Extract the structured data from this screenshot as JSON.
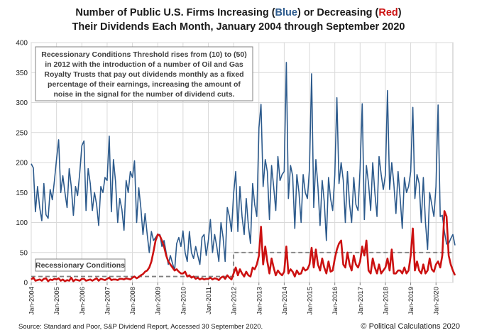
{
  "chart_data": {
    "type": "line",
    "title_parts": [
      {
        "text": "Number of Public U.S. Firms Increasing (",
        "color": "#1a1a1a"
      },
      {
        "text": "Blue",
        "color": "#2c5a8c"
      },
      {
        "text": ") or Decreasing (",
        "color": "#1a1a1a"
      },
      {
        "text": "Red",
        "color": "#cc1111"
      },
      {
        "text": ")",
        "color": "#1a1a1a"
      }
    ],
    "title_line2": "Their Dividends Each Month, January 2004 through September 2020",
    "ylim": [
      0,
      400
    ],
    "yticks": [
      "0",
      "50",
      "100",
      "150",
      "200",
      "250",
      "300",
      "350",
      "400"
    ],
    "x_start": "Jan-2004",
    "months": 201,
    "xticks": [
      "Jan-2004",
      "Jan-2005",
      "Jan-2006",
      "Jan-2007",
      "Jan-2008",
      "Jan-2009",
      "Jan-2010",
      "Jan-2011",
      "Jan-2012",
      "Jan-2013",
      "Jan-2014",
      "Jan-2015",
      "Jan-2016",
      "Jan-2017",
      "Jan-2018",
      "Jan-2019",
      "Jan-2020"
    ],
    "grid": true,
    "series": [
      {
        "name": "Increasing",
        "color": "#2c5a8c",
        "values": [
          198,
          191,
          118,
          160,
          125,
          103,
          165,
          113,
          107,
          155,
          138,
          170,
          205,
          238,
          150,
          178,
          150,
          125,
          190,
          160,
          112,
          160,
          145,
          182,
          228,
          236,
          120,
          190,
          165,
          120,
          150,
          130,
          95,
          160,
          150,
          175,
          170,
          244,
          118,
          205,
          168,
          100,
          140,
          122,
          87,
          170,
          150,
          185,
          175,
          203,
          100,
          158,
          125,
          80,
          115,
          80,
          50,
          85,
          70,
          75,
          80,
          80,
          60,
          70,
          50,
          30,
          45,
          32,
          20,
          65,
          75,
          60,
          86,
          50,
          35,
          85,
          50,
          40,
          60,
          45,
          30,
          75,
          80,
          45,
          70,
          105,
          50,
          80,
          60,
          35,
          100,
          75,
          35,
          125,
          110,
          85,
          148,
          185,
          85,
          160,
          110,
          80,
          140,
          95,
          65,
          165,
          130,
          110,
          258,
          297,
          160,
          205,
          185,
          105,
          195,
          160,
          120,
          210,
          170,
          180,
          185,
          367,
          140,
          195,
          178,
          90,
          180,
          150,
          100,
          180,
          150,
          140,
          190,
          348,
          125,
          205,
          160,
          95,
          170,
          135,
          70,
          175,
          140,
          120,
          180,
          308,
          165,
          200,
          170,
          100,
          185,
          130,
          100,
          175,
          130,
          120,
          190,
          298,
          105,
          195,
          165,
          120,
          200,
          150,
          110,
          210,
          180,
          155,
          180,
          320,
          155,
          200,
          165,
          115,
          185,
          140,
          90,
          175,
          150,
          160,
          185,
          292,
          140,
          180,
          165,
          100,
          175,
          100,
          55,
          150,
          130,
          110,
          160,
          296,
          110,
          112,
          85,
          64,
          65,
          73,
          80,
          62
        ]
      },
      {
        "name": "Decreasing",
        "color": "#cc1111",
        "values": [
          5,
          8,
          3,
          4,
          5,
          3,
          6,
          7,
          2,
          5,
          4,
          6,
          5,
          7,
          3,
          5,
          2,
          4,
          3,
          8,
          2,
          5,
          4,
          3,
          6,
          6,
          3,
          4,
          5,
          3,
          5,
          7,
          3,
          6,
          5,
          4,
          6,
          8,
          4,
          5,
          5,
          4,
          6,
          6,
          5,
          7,
          6,
          5,
          8,
          10,
          7,
          9,
          12,
          14,
          18,
          20,
          25,
          35,
          52,
          70,
          80,
          78,
          70,
          60,
          45,
          35,
          30,
          25,
          20,
          22,
          18,
          15,
          15,
          18,
          10,
          12,
          8,
          10,
          6,
          8,
          5,
          7,
          5,
          6,
          6,
          8,
          5,
          7,
          6,
          4,
          8,
          10,
          6,
          12,
          8,
          5,
          15,
          25,
          12,
          22,
          15,
          10,
          18,
          12,
          10,
          25,
          22,
          30,
          45,
          93,
          30,
          60,
          35,
          15,
          40,
          25,
          12,
          20,
          15,
          12,
          18,
          60,
          15,
          22,
          18,
          10,
          20,
          14,
          15,
          25,
          20,
          22,
          30,
          58,
          25,
          55,
          30,
          20,
          40,
          25,
          15,
          35,
          18,
          20,
          40,
          55,
          65,
          70,
          30,
          25,
          50,
          30,
          20,
          45,
          30,
          25,
          35,
          60,
          45,
          70,
          20,
          15,
          40,
          25,
          15,
          30,
          15,
          20,
          25,
          40,
          20,
          55,
          15,
          15,
          20,
          20,
          15,
          25,
          15,
          20,
          45,
          90,
          20,
          35,
          20,
          15,
          30,
          15,
          20,
          40,
          22,
          18,
          30,
          35,
          25,
          45,
          119,
          110,
          45,
          30,
          20,
          12
        ]
      }
    ],
    "threshold": {
      "name": "Recessionary Conditions",
      "segments": [
        {
          "from_month": 0,
          "to_month": 96,
          "value": 10
        },
        {
          "from_month": 96,
          "to_month": 200,
          "value": 50
        }
      ],
      "color": "#808080"
    },
    "annotation": [
      "Recessionary Conditions Threshold rises from (10) to (50)",
      "in 2012 with the introduction of a number of Oil and Gas",
      "Royalty Trusts that pay out dividends monthly as a fixed",
      "percentage of their earnings, increasing the amount of",
      "noise in the signal for the number of dividend cuts."
    ],
    "threshold_label": "Recessionary Conditions",
    "source": "Source:  Standard and Poor, S&P Dividend  Report, Accessed 30 September 2020.",
    "credit": "© Political Calculations 2020"
  }
}
